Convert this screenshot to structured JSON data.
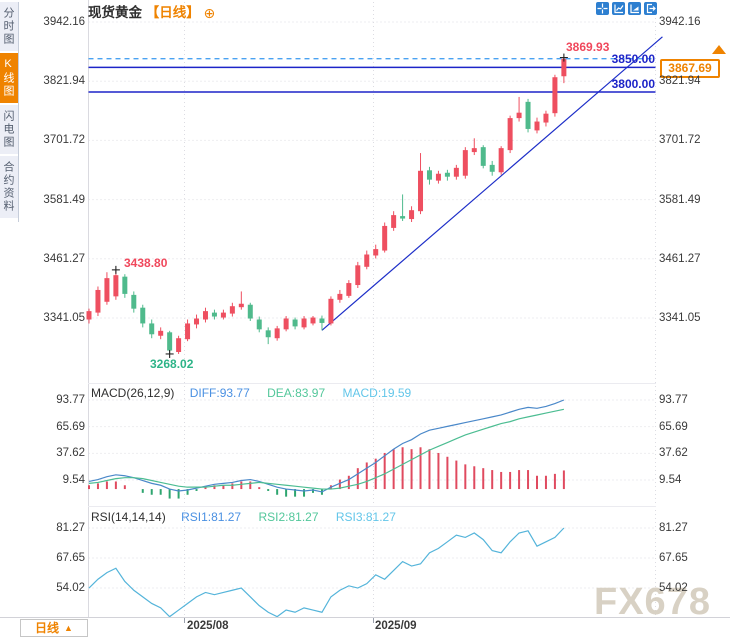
{
  "header": {
    "title": "现货黄金",
    "tag": "【日线】",
    "settings_icon": "gear-plus-icon",
    "toolbar_icons": [
      {
        "name": "crosshair-icon"
      },
      {
        "name": "axis-chart-icon"
      },
      {
        "name": "flag-chart-icon"
      },
      {
        "name": "exit-icon"
      }
    ]
  },
  "sidebar": {
    "tabs": [
      {
        "label": "分时图",
        "active": false
      },
      {
        "label": "K线图",
        "active": true
      },
      {
        "label": "闪电图",
        "active": false
      },
      {
        "label": "合约资料",
        "active": false
      }
    ]
  },
  "footer": {
    "timeframe_label": "日线",
    "timeframe_arrow": "▲",
    "watermark": "FX678"
  },
  "colors": {
    "up": "#ee4f60",
    "down": "#4fba8c",
    "hist_up": "#e04a5f",
    "hist_down": "#2ea56f",
    "diff_line": "#4a88c9",
    "dea_line": "#4cbd92",
    "rsi_line": "#54b4da",
    "trend_line": "#1d2ec8",
    "h_line": "#1d24c8",
    "current_dashed": "#4aa2f2",
    "grid": "#dcdce2",
    "marker": "#222222",
    "accent_orange": "#ef8300",
    "icon_blue": "#2d7fd0"
  },
  "chart_data": [
    {
      "id": "price",
      "type": "candlestick",
      "title": "现货黄金 日线",
      "y_ticks": [
        "3942.16",
        "3821.94",
        "3701.72",
        "3581.49",
        "3461.27",
        "3341.05"
      ],
      "x_ticks": [
        "2025/08",
        "2025/09"
      ],
      "candles": [
        [
          3338,
          3360,
          3330,
          3355
        ],
        [
          3352,
          3405,
          3345,
          3398
        ],
        [
          3374,
          3434,
          3368,
          3422
        ],
        [
          3385,
          3438.8,
          3378,
          3428
        ],
        [
          3425,
          3430,
          3382,
          3390
        ],
        [
          3388,
          3395,
          3352,
          3360
        ],
        [
          3362,
          3368,
          3322,
          3330
        ],
        [
          3330,
          3338,
          3300,
          3308
        ],
        [
          3305,
          3322,
          3298,
          3315
        ],
        [
          3312,
          3315,
          3268.02,
          3275
        ],
        [
          3272,
          3305,
          3268,
          3300
        ],
        [
          3298,
          3338,
          3294,
          3330
        ],
        [
          3328,
          3348,
          3320,
          3340
        ],
        [
          3338,
          3362,
          3332,
          3355
        ],
        [
          3352,
          3358,
          3338,
          3344
        ],
        [
          3342,
          3358,
          3338,
          3352
        ],
        [
          3350,
          3372,
          3344,
          3365
        ],
        [
          3363,
          3395,
          3358,
          3370
        ],
        [
          3368,
          3372,
          3335,
          3340
        ],
        [
          3338,
          3344,
          3312,
          3318
        ],
        [
          3316,
          3322,
          3288,
          3302
        ],
        [
          3300,
          3325,
          3295,
          3320
        ],
        [
          3318,
          3345,
          3314,
          3340
        ],
        [
          3338,
          3342,
          3318,
          3324
        ],
        [
          3322,
          3345,
          3318,
          3340
        ],
        [
          3330,
          3345,
          3326,
          3342
        ],
        [
          3340,
          3346,
          3316,
          3331
        ],
        [
          3330,
          3385,
          3326,
          3380
        ],
        [
          3378,
          3398,
          3372,
          3390
        ],
        [
          3386,
          3418,
          3382,
          3412
        ],
        [
          3408,
          3455,
          3402,
          3448
        ],
        [
          3445,
          3478,
          3440,
          3470
        ],
        [
          3468,
          3490,
          3462,
          3481
        ],
        [
          3478,
          3535,
          3474,
          3528
        ],
        [
          3524,
          3558,
          3518,
          3550
        ],
        [
          3548,
          3592,
          3538,
          3543
        ],
        [
          3542,
          3568,
          3536,
          3560
        ],
        [
          3558,
          3676,
          3552,
          3640
        ],
        [
          3641,
          3648,
          3612,
          3622
        ],
        [
          3620,
          3640,
          3614,
          3634
        ],
        [
          3636,
          3642,
          3620,
          3628
        ],
        [
          3628,
          3652,
          3622,
          3646
        ],
        [
          3630,
          3688,
          3624,
          3682
        ],
        [
          3678,
          3706,
          3672,
          3686
        ],
        [
          3688,
          3692,
          3645,
          3650
        ],
        [
          3652,
          3660,
          3630,
          3638
        ],
        [
          3637,
          3690,
          3632,
          3686
        ],
        [
          3682,
          3752,
          3676,
          3747
        ],
        [
          3747,
          3790,
          3740,
          3758
        ],
        [
          3780,
          3786,
          3718,
          3725
        ],
        [
          3722,
          3748,
          3716,
          3740
        ],
        [
          3738,
          3762,
          3730,
          3756
        ],
        [
          3757,
          3835,
          3750,
          3830
        ],
        [
          3832,
          3869.93,
          3818,
          3867.69
        ]
      ],
      "annotations": {
        "high": {
          "index": 3,
          "price": 3438.8,
          "label": "3438.80"
        },
        "low": {
          "index": 9,
          "price": 3268.02,
          "label": "3268.02"
        },
        "last_high": {
          "index": 53,
          "price": 3869.93,
          "label": "3869.93"
        }
      },
      "h_lines": [
        {
          "price": 3850,
          "label": "3850.00"
        },
        {
          "price": 3800,
          "label": "3800.00"
        }
      ],
      "current_price": {
        "value": 3867.69,
        "label": "3867.69"
      },
      "trendline": {
        "from": {
          "index": 26,
          "price": 3316
        },
        "to": {
          "index": 64,
          "price": 3912
        }
      }
    },
    {
      "id": "macd",
      "type": "line+histogram",
      "label": "MACD(26,12,9)",
      "series_labels": [
        {
          "name": "DIFF",
          "text": "DIFF:93.77"
        },
        {
          "name": "DEA",
          "text": "DEA:83.97"
        },
        {
          "name": "MACD",
          "text": "MACD:19.59"
        }
      ],
      "y_ticks": [
        "93.77",
        "65.69",
        "37.62",
        "9.54"
      ],
      "diff": [
        8,
        10,
        13,
        15,
        14,
        12,
        9,
        6,
        4,
        0,
        -2,
        -1,
        1,
        3,
        5,
        6,
        7,
        9,
        10,
        8,
        5,
        2,
        0,
        -1,
        -2,
        -1,
        -3,
        2,
        6,
        10,
        16,
        22,
        28,
        35,
        42,
        48,
        52,
        58,
        62,
        64,
        66,
        68,
        70,
        72,
        74,
        76,
        78,
        81,
        84,
        86,
        85,
        87,
        90,
        93.77
      ],
      "dea": [
        6,
        7,
        9,
        11,
        12,
        12,
        11,
        9,
        7,
        5,
        3,
        2,
        2,
        2,
        3,
        4,
        4,
        5,
        6,
        7,
        6,
        5,
        4,
        3,
        2,
        1,
        0,
        0,
        1,
        3,
        5,
        8,
        12,
        16,
        21,
        26,
        31,
        36,
        41,
        45,
        49,
        53,
        57,
        60,
        63,
        66,
        69,
        71,
        74,
        76,
        78,
        80,
        82,
        83.97
      ],
      "hist": [
        4,
        6,
        8,
        8,
        4,
        0,
        -4,
        -6,
        -6,
        -10,
        -10,
        -6,
        -2,
        2,
        4,
        4,
        6,
        8,
        8,
        2,
        -2,
        -6,
        -8,
        -8,
        -8,
        -4,
        -6,
        4,
        10,
        14,
        22,
        28,
        32,
        38,
        42,
        44,
        42,
        44,
        42,
        38,
        34,
        30,
        26,
        24,
        22,
        20,
        18,
        18,
        20,
        20,
        14,
        14,
        16,
        19.59
      ]
    },
    {
      "id": "rsi",
      "type": "line",
      "label": "RSI(14,14,14)",
      "series_labels": [
        {
          "name": "RSI1",
          "text": "RSI1:81.27"
        },
        {
          "name": "RSI2",
          "text": "RSI2:81.27"
        },
        {
          "name": "RSI3",
          "text": "RSI3:81.27"
        }
      ],
      "y_ticks": [
        "81.27",
        "67.65",
        "54.02"
      ],
      "rsi": [
        54,
        58,
        61,
        63,
        57,
        53,
        50,
        47,
        45,
        41,
        44,
        47,
        50,
        52,
        51,
        52,
        53,
        54,
        50,
        46,
        43,
        41,
        44,
        43,
        45,
        44,
        43,
        50,
        53,
        55,
        54,
        56,
        60,
        58,
        62,
        66,
        64,
        65,
        70,
        72,
        75,
        78,
        77,
        79,
        76,
        71,
        70,
        75,
        79,
        80,
        73,
        75,
        77,
        81.27
      ]
    }
  ]
}
